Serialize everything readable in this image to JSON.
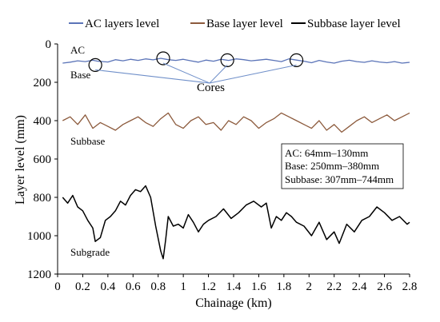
{
  "chart_data": {
    "type": "line",
    "xlabel": "Chainage (km)",
    "ylabel": "Layer level (mm)",
    "xlim": [
      0,
      2.8
    ],
    "ylim": [
      0,
      1200
    ],
    "y_inverted": true,
    "grid": false,
    "legend_position": "top",
    "xticks": [
      "0",
      "0.2",
      "0.4",
      "0.6",
      "0.8",
      "1",
      "1.2",
      "1.4",
      "1.6",
      "1.8",
      "2",
      "2.2",
      "2.4",
      "2.6",
      "2.8"
    ],
    "xtick_values": [
      0,
      0.2,
      0.4,
      0.6,
      0.8,
      1.0,
      1.2,
      1.4,
      1.6,
      1.8,
      2.0,
      2.2,
      2.4,
      2.6,
      2.8
    ],
    "yticks": [
      "0",
      "200",
      "400",
      "600",
      "800",
      "1000",
      "1200"
    ],
    "ytick_values": [
      0,
      200,
      400,
      600,
      800,
      1000,
      1200
    ],
    "series": [
      {
        "name": "AC layers level",
        "color": "#5b74b8",
        "legend_marker": "dash",
        "x": [
          0.04,
          0.1,
          0.16,
          0.22,
          0.28,
          0.32,
          0.4,
          0.46,
          0.52,
          0.58,
          0.64,
          0.7,
          0.76,
          0.82,
          0.88,
          0.94,
          1.0,
          1.06,
          1.12,
          1.18,
          1.24,
          1.3,
          1.36,
          1.42,
          1.48,
          1.54,
          1.6,
          1.66,
          1.72,
          1.78,
          1.84,
          1.9,
          1.96,
          2.02,
          2.08,
          2.14,
          2.2,
          2.26,
          2.32,
          2.38,
          2.44,
          2.5,
          2.56,
          2.62,
          2.68,
          2.74,
          2.8
        ],
        "values": [
          100,
          95,
          88,
          92,
          85,
          90,
          94,
          82,
          88,
          80,
          86,
          78,
          83,
          75,
          82,
          86,
          80,
          88,
          95,
          84,
          90,
          80,
          86,
          78,
          82,
          88,
          84,
          80,
          86,
          92,
          78,
          84,
          90,
          98,
          86,
          94,
          100,
          90,
          85,
          92,
          96,
          88,
          94,
          98,
          92,
          100,
          96
        ]
      },
      {
        "name": "Base layer level",
        "color": "#8c5a3c",
        "legend_marker": "dash",
        "x": [
          0.04,
          0.1,
          0.16,
          0.22,
          0.28,
          0.34,
          0.4,
          0.46,
          0.52,
          0.58,
          0.64,
          0.7,
          0.76,
          0.82,
          0.88,
          0.94,
          1.0,
          1.06,
          1.12,
          1.18,
          1.24,
          1.3,
          1.36,
          1.42,
          1.48,
          1.54,
          1.6,
          1.66,
          1.72,
          1.78,
          1.84,
          1.9,
          1.96,
          2.02,
          2.08,
          2.14,
          2.2,
          2.26,
          2.32,
          2.38,
          2.44,
          2.5,
          2.56,
          2.62,
          2.68,
          2.74,
          2.8
        ],
        "values": [
          400,
          380,
          420,
          370,
          440,
          410,
          430,
          450,
          420,
          400,
          380,
          410,
          430,
          390,
          360,
          420,
          440,
          400,
          380,
          420,
          410,
          450,
          400,
          420,
          380,
          400,
          440,
          410,
          390,
          360,
          380,
          400,
          420,
          440,
          400,
          450,
          420,
          460,
          430,
          400,
          380,
          410,
          390,
          370,
          400,
          380,
          360
        ]
      },
      {
        "name": "Subbase layer level",
        "color": "#000000",
        "legend_marker": "dash",
        "x": [
          0.04,
          0.08,
          0.12,
          0.16,
          0.2,
          0.24,
          0.28,
          0.3,
          0.34,
          0.38,
          0.42,
          0.46,
          0.5,
          0.54,
          0.58,
          0.62,
          0.66,
          0.7,
          0.74,
          0.78,
          0.82,
          0.84,
          0.86,
          0.88,
          0.92,
          0.96,
          1.0,
          1.04,
          1.08,
          1.12,
          1.16,
          1.2,
          1.26,
          1.32,
          1.38,
          1.44,
          1.5,
          1.56,
          1.62,
          1.66,
          1.7,
          1.74,
          1.78,
          1.82,
          1.86,
          1.9,
          1.96,
          2.02,
          2.08,
          2.14,
          2.2,
          2.24,
          2.3,
          2.36,
          2.42,
          2.48,
          2.54,
          2.6,
          2.66,
          2.72,
          2.78,
          2.8
        ],
        "values": [
          800,
          830,
          790,
          850,
          870,
          920,
          960,
          1030,
          1010,
          920,
          900,
          870,
          820,
          840,
          790,
          760,
          770,
          740,
          800,
          950,
          1080,
          1120,
          1020,
          900,
          950,
          940,
          960,
          890,
          930,
          980,
          940,
          920,
          900,
          860,
          910,
          880,
          840,
          820,
          850,
          830,
          960,
          900,
          920,
          880,
          900,
          930,
          950,
          1000,
          930,
          1020,
          980,
          1040,
          940,
          980,
          920,
          900,
          850,
          880,
          920,
          900,
          940,
          930
        ]
      }
    ],
    "annotations": {
      "layer_labels": [
        "AC",
        "Base",
        "Subbase",
        "Subgrade"
      ],
      "cores_label": "Cores",
      "core_positions": [
        {
          "x": 0.3,
          "y": 110
        },
        {
          "x": 0.84,
          "y": 75
        },
        {
          "x": 1.35,
          "y": 85
        },
        {
          "x": 1.9,
          "y": 85
        }
      ],
      "notes": [
        "AC: 64mm–130mm",
        "Base: 250mm–380mm",
        "Subbase: 307mm–744mm"
      ]
    }
  }
}
